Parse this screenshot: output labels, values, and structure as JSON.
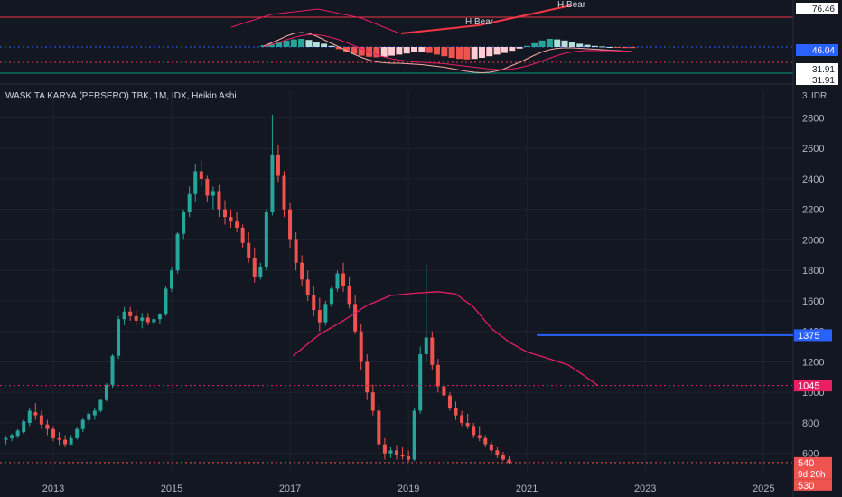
{
  "chart_data": {
    "type": "candlestick",
    "title": "WASKITA KARYA (PERSERO) TBK, 1M, IDX, Heikin Ashi",
    "currency": "IDR",
    "x_ticks": [
      "2013",
      "2015",
      "2017",
      "2019",
      "2021",
      "2023",
      "2025"
    ],
    "y_ticks": [
      600,
      800,
      1000,
      1200,
      1400,
      1600,
      1800,
      2000,
      2200,
      2400,
      2600,
      2800
    ],
    "ylim": [
      480,
      2980
    ],
    "xlim": [
      2012.1,
      2025.5
    ],
    "colors": {
      "up": "#26a69a",
      "down": "#ef5350",
      "ma": "#e91e63",
      "hline": "#2962ff",
      "background": "#131722",
      "grid": "#1e222d"
    },
    "price_labels": {
      "hline_level": {
        "value": 1375,
        "label": "1375"
      },
      "ma_level": {
        "value": 1045,
        "label": "1045"
      },
      "last_price": {
        "value": 540,
        "label": "540",
        "countdown": "9d 20h"
      },
      "low": {
        "value": 530,
        "label": "530"
      }
    },
    "ma_line": [
      [
        2017.05,
        1240
      ],
      [
        2017.5,
        1380
      ],
      [
        2017.9,
        1470
      ],
      [
        2018.3,
        1570
      ],
      [
        2018.7,
        1635
      ],
      [
        2019.1,
        1650
      ],
      [
        2019.5,
        1660
      ],
      [
        2019.8,
        1645
      ],
      [
        2020.1,
        1560
      ],
      [
        2020.4,
        1420
      ],
      [
        2020.7,
        1330
      ],
      [
        2021.0,
        1265
      ],
      [
        2021.3,
        1230
      ],
      [
        2021.7,
        1180
      ],
      [
        2021.95,
        1115
      ],
      [
        2022.2,
        1045
      ]
    ],
    "hline": {
      "start": 2021.17,
      "end": 2025.5,
      "value": 1375
    },
    "candles": [
      {
        "t": 2012.2,
        "o": 690,
        "h": 710,
        "l": 660,
        "c": 700
      },
      {
        "t": 2012.3,
        "o": 700,
        "h": 730,
        "l": 680,
        "c": 720
      },
      {
        "t": 2012.4,
        "o": 710,
        "h": 760,
        "l": 700,
        "c": 750
      },
      {
        "t": 2012.5,
        "o": 740,
        "h": 820,
        "l": 730,
        "c": 810
      },
      {
        "t": 2012.6,
        "o": 800,
        "h": 900,
        "l": 780,
        "c": 880
      },
      {
        "t": 2012.7,
        "o": 870,
        "h": 930,
        "l": 820,
        "c": 850
      },
      {
        "t": 2012.8,
        "o": 850,
        "h": 880,
        "l": 760,
        "c": 790
      },
      {
        "t": 2012.9,
        "o": 790,
        "h": 820,
        "l": 720,
        "c": 760
      },
      {
        "t": 2013.0,
        "o": 760,
        "h": 780,
        "l": 680,
        "c": 700
      },
      {
        "t": 2013.1,
        "o": 700,
        "h": 740,
        "l": 650,
        "c": 690
      },
      {
        "t": 2013.2,
        "o": 690,
        "h": 720,
        "l": 640,
        "c": 660
      },
      {
        "t": 2013.3,
        "o": 660,
        "h": 720,
        "l": 650,
        "c": 700
      },
      {
        "t": 2013.4,
        "o": 700,
        "h": 770,
        "l": 690,
        "c": 760
      },
      {
        "t": 2013.5,
        "o": 760,
        "h": 830,
        "l": 740,
        "c": 820
      },
      {
        "t": 2013.6,
        "o": 820,
        "h": 880,
        "l": 800,
        "c": 860
      },
      {
        "t": 2013.7,
        "o": 850,
        "h": 900,
        "l": 820,
        "c": 880
      },
      {
        "t": 2013.8,
        "o": 880,
        "h": 960,
        "l": 870,
        "c": 950
      },
      {
        "t": 2013.9,
        "o": 950,
        "h": 1060,
        "l": 940,
        "c": 1050
      },
      {
        "t": 2014.0,
        "o": 1050,
        "h": 1250,
        "l": 1030,
        "c": 1240
      },
      {
        "t": 2014.1,
        "o": 1240,
        "h": 1500,
        "l": 1220,
        "c": 1480
      },
      {
        "t": 2014.2,
        "o": 1480,
        "h": 1560,
        "l": 1440,
        "c": 1530
      },
      {
        "t": 2014.3,
        "o": 1530,
        "h": 1560,
        "l": 1470,
        "c": 1500
      },
      {
        "t": 2014.4,
        "o": 1500,
        "h": 1540,
        "l": 1440,
        "c": 1470
      },
      {
        "t": 2014.5,
        "o": 1470,
        "h": 1520,
        "l": 1420,
        "c": 1490
      },
      {
        "t": 2014.6,
        "o": 1490,
        "h": 1520,
        "l": 1440,
        "c": 1460
      },
      {
        "t": 2014.7,
        "o": 1460,
        "h": 1500,
        "l": 1440,
        "c": 1480
      },
      {
        "t": 2014.8,
        "o": 1480,
        "h": 1520,
        "l": 1450,
        "c": 1510
      },
      {
        "t": 2014.9,
        "o": 1510,
        "h": 1700,
        "l": 1500,
        "c": 1680
      },
      {
        "t": 2015.0,
        "o": 1680,
        "h": 1820,
        "l": 1660,
        "c": 1800
      },
      {
        "t": 2015.1,
        "o": 1800,
        "h": 2050,
        "l": 1780,
        "c": 2040
      },
      {
        "t": 2015.2,
        "o": 2040,
        "h": 2200,
        "l": 2000,
        "c": 2180
      },
      {
        "t": 2015.3,
        "o": 2180,
        "h": 2350,
        "l": 2150,
        "c": 2300
      },
      {
        "t": 2015.4,
        "o": 2300,
        "h": 2500,
        "l": 2250,
        "c": 2450
      },
      {
        "t": 2015.5,
        "o": 2450,
        "h": 2520,
        "l": 2350,
        "c": 2400
      },
      {
        "t": 2015.6,
        "o": 2400,
        "h": 2420,
        "l": 2250,
        "c": 2290
      },
      {
        "t": 2015.7,
        "o": 2290,
        "h": 2350,
        "l": 2200,
        "c": 2320
      },
      {
        "t": 2015.8,
        "o": 2320,
        "h": 2360,
        "l": 2150,
        "c": 2200
      },
      {
        "t": 2015.9,
        "o": 2200,
        "h": 2260,
        "l": 2100,
        "c": 2150
      },
      {
        "t": 2016.0,
        "o": 2150,
        "h": 2200,
        "l": 2080,
        "c": 2120
      },
      {
        "t": 2016.1,
        "o": 2120,
        "h": 2180,
        "l": 2050,
        "c": 2080
      },
      {
        "t": 2016.2,
        "o": 2080,
        "h": 2100,
        "l": 1950,
        "c": 1980
      },
      {
        "t": 2016.3,
        "o": 1980,
        "h": 2050,
        "l": 1850,
        "c": 1880
      },
      {
        "t": 2016.4,
        "o": 1880,
        "h": 1950,
        "l": 1720,
        "c": 1760
      },
      {
        "t": 2016.5,
        "o": 1760,
        "h": 1850,
        "l": 1740,
        "c": 1820
      },
      {
        "t": 2016.6,
        "o": 1820,
        "h": 2200,
        "l": 1800,
        "c": 2180
      },
      {
        "t": 2016.7,
        "o": 2180,
        "h": 2820,
        "l": 2160,
        "c": 2560
      },
      {
        "t": 2016.8,
        "o": 2560,
        "h": 2620,
        "l": 2380,
        "c": 2420
      },
      {
        "t": 2016.9,
        "o": 2420,
        "h": 2450,
        "l": 2150,
        "c": 2200
      },
      {
        "t": 2017.0,
        "o": 2200,
        "h": 2240,
        "l": 1950,
        "c": 2000
      },
      {
        "t": 2017.1,
        "o": 2000,
        "h": 2050,
        "l": 1800,
        "c": 1850
      },
      {
        "t": 2017.2,
        "o": 1850,
        "h": 1900,
        "l": 1700,
        "c": 1740
      },
      {
        "t": 2017.3,
        "o": 1740,
        "h": 1800,
        "l": 1600,
        "c": 1640
      },
      {
        "t": 2017.4,
        "o": 1640,
        "h": 1700,
        "l": 1500,
        "c": 1540
      },
      {
        "t": 2017.5,
        "o": 1540,
        "h": 1620,
        "l": 1400,
        "c": 1460
      },
      {
        "t": 2017.6,
        "o": 1460,
        "h": 1600,
        "l": 1440,
        "c": 1580
      },
      {
        "t": 2017.7,
        "o": 1580,
        "h": 1700,
        "l": 1560,
        "c": 1680
      },
      {
        "t": 2017.8,
        "o": 1680,
        "h": 1800,
        "l": 1660,
        "c": 1780
      },
      {
        "t": 2017.9,
        "o": 1780,
        "h": 1850,
        "l": 1660,
        "c": 1700
      },
      {
        "t": 2018.0,
        "o": 1700,
        "h": 1760,
        "l": 1550,
        "c": 1580
      },
      {
        "t": 2018.1,
        "o": 1580,
        "h": 1640,
        "l": 1380,
        "c": 1400
      },
      {
        "t": 2018.2,
        "o": 1400,
        "h": 1450,
        "l": 1150,
        "c": 1200
      },
      {
        "t": 2018.3,
        "o": 1200,
        "h": 1250,
        "l": 950,
        "c": 1000
      },
      {
        "t": 2018.4,
        "o": 1000,
        "h": 1050,
        "l": 850,
        "c": 880
      },
      {
        "t": 2018.5,
        "o": 880,
        "h": 920,
        "l": 620,
        "c": 660
      },
      {
        "t": 2018.6,
        "o": 660,
        "h": 700,
        "l": 560,
        "c": 600
      },
      {
        "t": 2018.7,
        "o": 600,
        "h": 640,
        "l": 570,
        "c": 620
      },
      {
        "t": 2018.8,
        "o": 620,
        "h": 650,
        "l": 560,
        "c": 590
      },
      {
        "t": 2018.9,
        "o": 590,
        "h": 640,
        "l": 560,
        "c": 580
      },
      {
        "t": 2019.0,
        "o": 580,
        "h": 620,
        "l": 540,
        "c": 560
      },
      {
        "t": 2019.1,
        "o": 560,
        "h": 900,
        "l": 550,
        "c": 880
      },
      {
        "t": 2019.2,
        "o": 880,
        "h": 1300,
        "l": 860,
        "c": 1250
      },
      {
        "t": 2019.3,
        "o": 1250,
        "h": 1840,
        "l": 1200,
        "c": 1360
      },
      {
        "t": 2019.4,
        "o": 1360,
        "h": 1400,
        "l": 1150,
        "c": 1180
      },
      {
        "t": 2019.5,
        "o": 1180,
        "h": 1220,
        "l": 1000,
        "c": 1040
      },
      {
        "t": 2019.6,
        "o": 1040,
        "h": 1080,
        "l": 950,
        "c": 980
      },
      {
        "t": 2019.7,
        "o": 980,
        "h": 1000,
        "l": 880,
        "c": 900
      },
      {
        "t": 2019.8,
        "o": 900,
        "h": 940,
        "l": 820,
        "c": 850
      },
      {
        "t": 2019.9,
        "o": 850,
        "h": 880,
        "l": 780,
        "c": 800
      },
      {
        "t": 2020.0,
        "o": 800,
        "h": 860,
        "l": 760,
        "c": 780
      },
      {
        "t": 2020.1,
        "o": 780,
        "h": 800,
        "l": 700,
        "c": 720
      },
      {
        "t": 2020.2,
        "o": 720,
        "h": 780,
        "l": 680,
        "c": 700
      },
      {
        "t": 2020.3,
        "o": 700,
        "h": 720,
        "l": 640,
        "c": 660
      },
      {
        "t": 2020.4,
        "o": 660,
        "h": 680,
        "l": 600,
        "c": 620
      },
      {
        "t": 2020.5,
        "o": 620,
        "h": 640,
        "l": 570,
        "c": 590
      },
      {
        "t": 2020.6,
        "o": 590,
        "h": 610,
        "l": 550,
        "c": 560
      },
      {
        "t": 2020.7,
        "o": 560,
        "h": 580,
        "l": 530,
        "c": 540
      }
    ]
  },
  "axis": {
    "currency_label": "IDR",
    "currency_prefix": "3"
  },
  "indicator": {
    "labels": [
      "H Bear",
      "H Bear"
    ],
    "scale_values": [
      "76.46",
      "46.04",
      "31.91",
      "31.91"
    ],
    "histogram": [
      0.3,
      0.6,
      0.9,
      1.2,
      1.4,
      1.5,
      1.3,
      1.0,
      0.6,
      0.2,
      -0.4,
      -0.9,
      -1.3,
      -1.6,
      -1.8,
      -1.9,
      -1.8,
      -1.6,
      -1.4,
      -1.2,
      -1.0,
      -0.9,
      -1.1,
      -1.4,
      -1.7,
      -2.0,
      -2.2,
      -2.3,
      -2.2,
      -2.0,
      -1.7,
      -1.4,
      -1.1,
      -0.7,
      -0.3,
      0.2,
      0.7,
      1.2,
      1.5,
      1.4,
      1.2,
      0.9,
      0.6,
      0.4,
      0.2,
      0.1,
      0.0,
      -0.1,
      -0.2,
      -0.2
    ],
    "fast": [
      0.2,
      0.9,
      1.6,
      2.4,
      3.0,
      3.2,
      3.0,
      2.4,
      1.6,
      0.8,
      0.0,
      -0.8,
      -1.6,
      -2.3,
      -2.9,
      -3.3,
      -3.5,
      -3.6,
      -3.6,
      -3.7,
      -3.8,
      -3.9,
      -4.1,
      -4.3,
      -4.5,
      -4.8,
      -5.1,
      -5.4,
      -5.6,
      -5.7,
      -5.6,
      -5.3,
      -4.8,
      -4.1,
      -3.4,
      -2.6,
      -1.8,
      -1.1,
      -0.6,
      -0.3,
      -0.2,
      -0.2,
      -0.3,
      -0.4,
      -0.5,
      -0.6,
      -0.7,
      -0.8,
      -0.9,
      -1.0
    ],
    "slow": [
      0.1,
      0.5,
      1.0,
      1.6,
      2.1,
      2.5,
      2.7,
      2.7,
      2.5,
      2.1,
      1.6,
      1.0,
      0.3,
      -0.4,
      -1.1,
      -1.7,
      -2.2,
      -2.6,
      -2.9,
      -3.1,
      -3.3,
      -3.4,
      -3.5,
      -3.6,
      -3.7,
      -3.9,
      -4.1,
      -4.3,
      -4.5,
      -4.7,
      -4.9,
      -5.0,
      -5.0,
      -4.9,
      -4.6,
      -4.2,
      -3.7,
      -3.1,
      -2.5,
      -1.9,
      -1.4,
      -1.1,
      -0.9,
      -0.8,
      -0.8,
      -0.8,
      -0.8,
      -0.9,
      -0.9,
      -1.0
    ]
  }
}
